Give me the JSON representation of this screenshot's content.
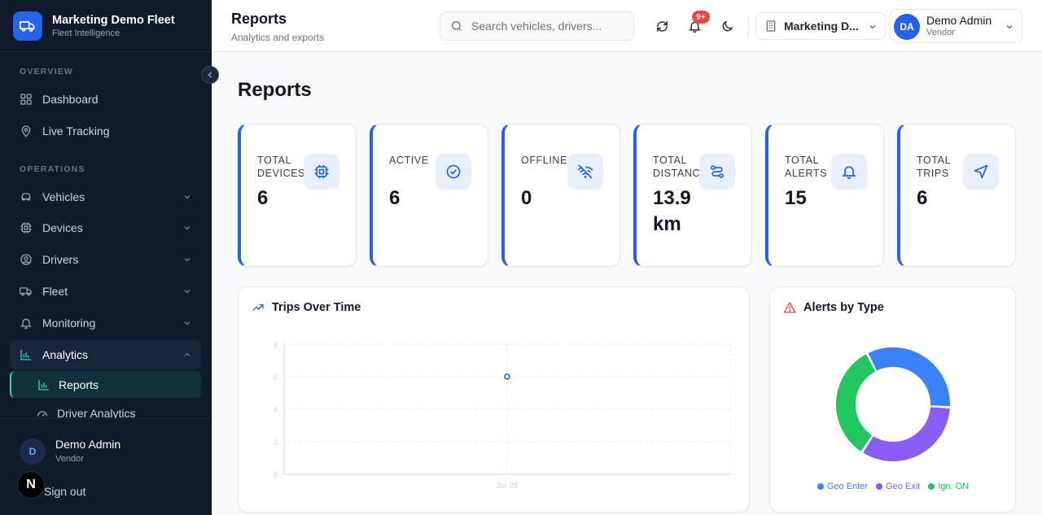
{
  "brand": {
    "title": "Marketing Demo Fleet",
    "subtitle": "Fleet Intelligence"
  },
  "sidebar": {
    "sections": [
      {
        "label": "OVERVIEW"
      },
      {
        "label": "OPERATIONS"
      }
    ],
    "items": [
      {
        "label": "Dashboard"
      },
      {
        "label": "Live Tracking"
      },
      {
        "label": "Vehicles"
      },
      {
        "label": "Devices"
      },
      {
        "label": "Drivers"
      },
      {
        "label": "Fleet"
      },
      {
        "label": "Monitoring"
      },
      {
        "label": "Analytics"
      }
    ],
    "subitems": [
      {
        "label": "Reports"
      },
      {
        "label": "Driver Analytics"
      }
    ],
    "user": {
      "initial": "D",
      "name": "Demo Admin",
      "role": "Vendor"
    },
    "signout": "Sign out",
    "badge": "N"
  },
  "topbar": {
    "title": "Reports",
    "subtitle": "Analytics and exports",
    "search_placeholder": "Search vehicles, drivers...",
    "notification_count": "9+",
    "org": "Marketing D...",
    "profile": {
      "initials": "DA",
      "name": "Demo Admin",
      "role": "Vendor"
    }
  },
  "page": {
    "heading": "Reports"
  },
  "stats": [
    {
      "label": "TOTAL DEVICES",
      "value": "6",
      "icon": "chip-icon"
    },
    {
      "label": "ACTIVE",
      "value": "6",
      "icon": "check-circle-icon"
    },
    {
      "label": "OFFLINE",
      "value": "0",
      "icon": "wifi-off-icon"
    },
    {
      "label": "TOTAL DISTANCE",
      "value": "13.9 km",
      "icon": "route-icon"
    },
    {
      "label": "TOTAL ALERTS",
      "value": "15",
      "icon": "bell-icon"
    },
    {
      "label": "TOTAL TRIPS",
      "value": "6",
      "icon": "navigation-icon"
    }
  ],
  "colors": {
    "accent": "#2563eb",
    "sidebar_bg": "#0f1b2d",
    "active_teal": "#2dd4bf",
    "alert_red": "#ef4444"
  },
  "trips_panel": {
    "title": "Trips Over Time"
  },
  "alerts_panel": {
    "title": "Alerts by Type"
  },
  "chart_data": [
    {
      "type": "line",
      "title": "Trips Over Time",
      "x": [
        "Jul 29"
      ],
      "series": [
        {
          "values": [
            6
          ]
        }
      ],
      "yticks": [
        0,
        2,
        4,
        6,
        8
      ],
      "ylim": [
        0,
        8
      ],
      "grid": true
    },
    {
      "type": "pie",
      "title": "Alerts by Type",
      "donut": true,
      "categories": [
        "Geo Enter",
        "Geo Exit",
        "Ign. ON"
      ],
      "values": [
        5,
        5,
        5
      ],
      "colors": [
        "#3b82f6",
        "#8b5cf6",
        "#22c55e"
      ],
      "legend": "bottom"
    }
  ]
}
